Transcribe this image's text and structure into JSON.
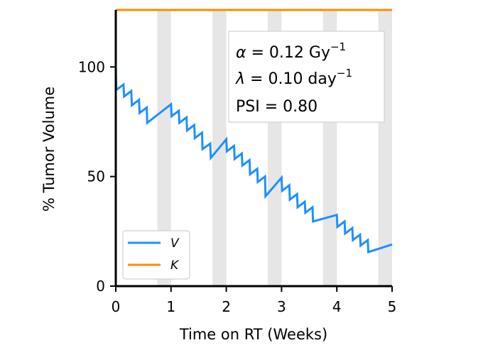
{
  "chart_data": {
    "type": "line",
    "xlabel": "Time on RT (Weeks)",
    "ylabel": "% Tumor Volume",
    "xlim": [
      0,
      5
    ],
    "ylim": [
      0,
      126
    ],
    "xticks": [
      "0",
      "1",
      "2",
      "3",
      "4",
      "5"
    ],
    "yticks": [
      "0",
      "50",
      "100"
    ],
    "weekend_bands": [
      [
        0.75,
        1.0
      ],
      [
        1.75,
        2.0
      ],
      [
        2.75,
        3.0
      ],
      [
        3.75,
        4.0
      ],
      [
        4.75,
        5.0
      ]
    ],
    "annotation": {
      "alpha_symbol": "α",
      "alpha_value": " = 0.12 Gy",
      "alpha_exp": "−1",
      "lambda_symbol": "λ",
      "lambda_value": " = 0.10 day",
      "lambda_exp": "−1",
      "psi_text": "PSI = 0.80"
    },
    "legend": {
      "placement": "lower-left",
      "entries": [
        {
          "label": "V",
          "color": "#1e90ff"
        },
        {
          "label": "K",
          "color": "#ff8c00"
        }
      ]
    },
    "series": [
      {
        "name": "V",
        "color": "#1e90ff",
        "points": [
          [
            0.0,
            100.0
          ],
          [
            0.01,
            89.5
          ],
          [
            0.14,
            92.0
          ],
          [
            0.15,
            86.5
          ],
          [
            0.28,
            89.0
          ],
          [
            0.29,
            82.5
          ],
          [
            0.42,
            85.0
          ],
          [
            0.43,
            79.0
          ],
          [
            0.56,
            81.5
          ],
          [
            0.57,
            74.5
          ],
          [
            1.0,
            83.0
          ],
          [
            1.01,
            77.5
          ],
          [
            1.14,
            80.0
          ],
          [
            1.15,
            74.5
          ],
          [
            1.28,
            77.0
          ],
          [
            1.29,
            71.0
          ],
          [
            1.42,
            73.5
          ],
          [
            1.43,
            67.5
          ],
          [
            1.56,
            70.0
          ],
          [
            1.57,
            62.5
          ],
          [
            1.71,
            65.0
          ],
          [
            1.72,
            58.5
          ],
          [
            2.0,
            67.0
          ],
          [
            2.01,
            61.5
          ],
          [
            2.14,
            64.0
          ],
          [
            2.15,
            58.0
          ],
          [
            2.28,
            60.5
          ],
          [
            2.29,
            55.0
          ],
          [
            2.42,
            57.5
          ],
          [
            2.43,
            51.0
          ],
          [
            2.56,
            53.5
          ],
          [
            2.57,
            47.5
          ],
          [
            2.7,
            50.0
          ],
          [
            2.71,
            41.0
          ],
          [
            3.0,
            49.5
          ],
          [
            3.01,
            43.5
          ],
          [
            3.14,
            46.0
          ],
          [
            3.15,
            39.5
          ],
          [
            3.28,
            42.0
          ],
          [
            3.29,
            36.0
          ],
          [
            3.42,
            38.5
          ],
          [
            3.43,
            33.5
          ],
          [
            3.56,
            36.0
          ],
          [
            3.57,
            29.5
          ],
          [
            4.0,
            32.5
          ],
          [
            4.01,
            27.0
          ],
          [
            4.14,
            29.5
          ],
          [
            4.15,
            24.0
          ],
          [
            4.28,
            26.5
          ],
          [
            4.29,
            21.0
          ],
          [
            4.42,
            23.5
          ],
          [
            4.43,
            18.5
          ],
          [
            4.56,
            21.0
          ],
          [
            4.57,
            15.5
          ],
          [
            5.0,
            19.0
          ]
        ]
      },
      {
        "name": "K",
        "color": "#ff8c00",
        "points": [
          [
            0.0,
            126.0
          ],
          [
            5.0,
            126.0
          ]
        ]
      }
    ]
  }
}
